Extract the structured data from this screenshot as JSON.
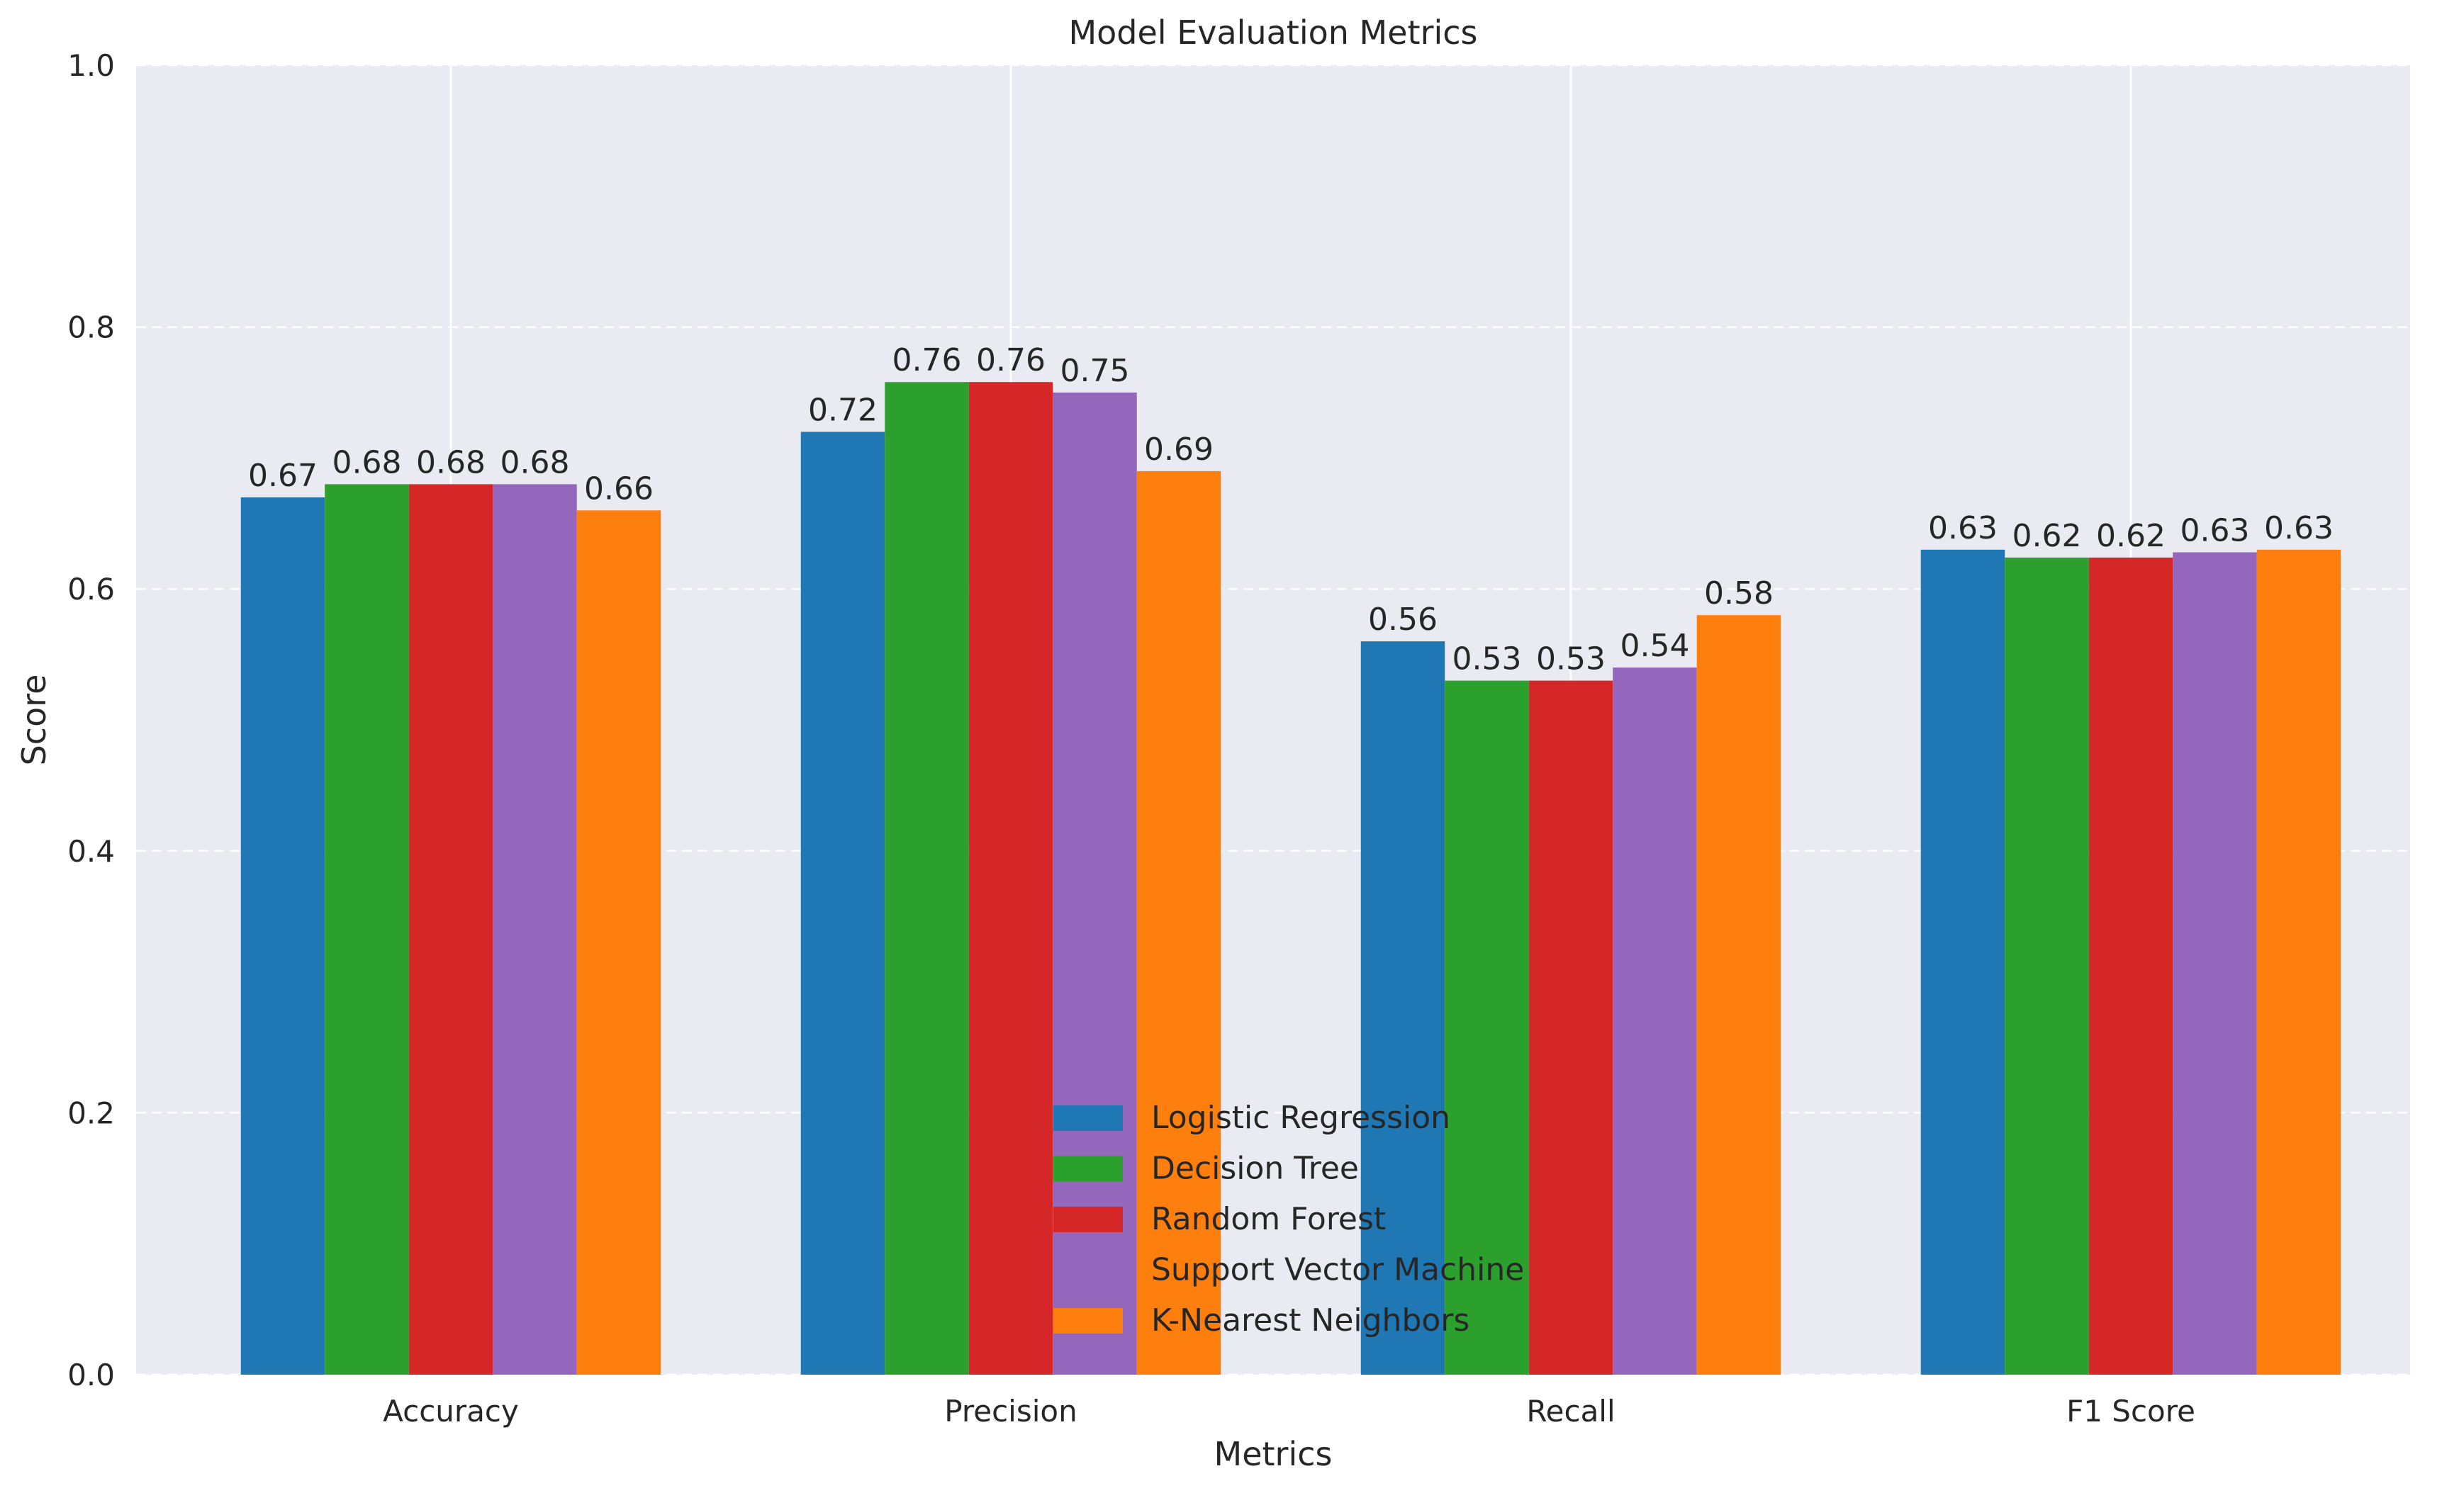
{
  "chart_data": {
    "type": "bar",
    "title": "Model Evaluation Metrics",
    "xlabel": "Metrics",
    "ylabel": "Score",
    "ylim": [
      0,
      1.0
    ],
    "yticks": [
      "0.0",
      "0.2",
      "0.4",
      "0.6",
      "0.8",
      "1.0"
    ],
    "grid": true,
    "legend_position": "bottom-center",
    "categories": [
      "Accuracy",
      "Precision",
      "Recall",
      "F1 Score"
    ],
    "series": [
      {
        "name": "Logistic Regression",
        "color": "#1f77b4",
        "values": [
          0.67,
          0.72,
          0.56,
          0.63
        ],
        "labels": [
          "0.67",
          "0.72",
          "0.56",
          "0.63"
        ]
      },
      {
        "name": "Decision Tree",
        "color": "#2ca02c",
        "values": [
          0.68,
          0.758,
          0.53,
          0.624
        ],
        "labels": [
          "0.68",
          "0.76",
          "0.53",
          "0.62"
        ]
      },
      {
        "name": "Random Forest",
        "color": "#d62728",
        "values": [
          0.68,
          0.758,
          0.53,
          0.624
        ],
        "labels": [
          "0.68",
          "0.76",
          "0.53",
          "0.62"
        ]
      },
      {
        "name": "Support Vector Machine",
        "color": "#9467bd",
        "values": [
          0.68,
          0.75,
          0.54,
          0.628
        ],
        "labels": [
          "0.68",
          "0.75",
          "0.54",
          "0.63"
        ]
      },
      {
        "name": "K-Nearest Neighbors",
        "color": "#ff7f0e",
        "values": [
          0.66,
          0.69,
          0.58,
          0.63
        ],
        "labels": [
          "0.66",
          "0.69",
          "0.58",
          "0.63"
        ]
      }
    ]
  }
}
